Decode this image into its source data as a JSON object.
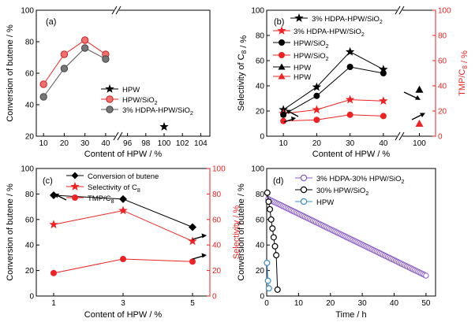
{
  "colors": {
    "black": "#000000",
    "red": "#ee2222",
    "gray": "#666666",
    "purple": "#8a5cc8",
    "blue": "#3d8ec4"
  },
  "chart_data": [
    {
      "panel_label": "(a)",
      "type": "line",
      "xlabel": "Content of HPW / %",
      "ylabel": "Conversion of butene / %",
      "x_ticks_left": [
        "10",
        "20",
        "30",
        "40"
      ],
      "x_ticks_right": [
        "96",
        "98",
        "100",
        "102",
        "104"
      ],
      "y_ticks": [
        "20",
        "40",
        "60",
        "80",
        "100"
      ],
      "ylim": [
        20,
        100
      ],
      "legend": [
        "HPW",
        "HPW/SiO2",
        "3% HDPA-HPW/SiO2"
      ],
      "series": [
        {
          "name": "HPW",
          "x": [
            100
          ],
          "values": [
            26
          ]
        },
        {
          "name": "HPW/SiO2",
          "x": [
            10,
            20,
            30,
            40
          ],
          "values": [
            53,
            72,
            81,
            72
          ]
        },
        {
          "name": "3% HDPA-HPW/SiO2",
          "x": [
            10,
            20,
            30,
            40
          ],
          "values": [
            45,
            63,
            76,
            69
          ]
        }
      ]
    },
    {
      "panel_label": "(b)",
      "type": "line",
      "xlabel": "Content of HPW / %",
      "ylabel": "Selectivity of C8 / %",
      "y2label": "TMP/C8 / %",
      "x_ticks": [
        "10",
        "20",
        "30",
        "40",
        "100"
      ],
      "y_ticks": [
        "0",
        "20",
        "40",
        "60",
        "80",
        "100"
      ],
      "y2_ticks": [
        "0",
        "20",
        "40",
        "60",
        "80",
        "100"
      ],
      "ylim": [
        0,
        100
      ],
      "y2lim": [
        0,
        100
      ],
      "legend": [
        "3% HDPA-HPW/SiO2",
        "3% HDPA-HPW/SiO2",
        "HPW/SiO2",
        "HPW/SiO2",
        "HPW",
        "HPW"
      ],
      "series": [
        {
          "name": "3% HDPA-HPW/SiO2",
          "axis": "left",
          "x": [
            10,
            20,
            30,
            40
          ],
          "values": [
            21,
            39,
            67,
            53
          ]
        },
        {
          "name": "3% HDPA-HPW/SiO2",
          "axis": "right",
          "x": [
            10,
            20,
            30,
            40
          ],
          "values": [
            18,
            21,
            29,
            28
          ]
        },
        {
          "name": "HPW/SiO2",
          "axis": "left",
          "x": [
            10,
            20,
            30,
            40
          ],
          "values": [
            17,
            32,
            55,
            50
          ]
        },
        {
          "name": "HPW/SiO2",
          "axis": "right",
          "x": [
            10,
            20,
            30,
            40
          ],
          "values": [
            12,
            13,
            17,
            16
          ]
        },
        {
          "name": "HPW",
          "axis": "left",
          "x": [
            100
          ],
          "values": [
            37
          ]
        },
        {
          "name": "HPW",
          "axis": "right",
          "x": [
            100
          ],
          "values": [
            10
          ]
        }
      ]
    },
    {
      "panel_label": "(c)",
      "type": "line",
      "xlabel": "Content of HPW / %",
      "ylabel": "Conversion of butene / %",
      "y2label": "Selectivity / %",
      "x_ticks": [
        "1",
        "3",
        "5"
      ],
      "y_ticks": [
        "0",
        "20",
        "40",
        "60",
        "80",
        "100"
      ],
      "y2_ticks": [
        "0",
        "20",
        "40",
        "60",
        "80",
        "100"
      ],
      "ylim": [
        0,
        100
      ],
      "legend": [
        "Conversion of butene",
        "Selectivity of C8",
        "TMP/C8"
      ],
      "series": [
        {
          "name": "Conversion of butene",
          "axis": "left",
          "x": [
            1,
            3,
            5
          ],
          "values": [
            79,
            76,
            54
          ]
        },
        {
          "name": "Selectivity of C8",
          "axis": "right",
          "x": [
            1,
            3,
            5
          ],
          "values": [
            56,
            67,
            43
          ]
        },
        {
          "name": "TMP/C8",
          "axis": "right",
          "x": [
            1,
            3,
            5
          ],
          "values": [
            18,
            29,
            27
          ]
        }
      ]
    },
    {
      "panel_label": "(d)",
      "type": "scatter",
      "xlabel": "Time / h",
      "ylabel": "Conversion of butene / %",
      "x_ticks": [
        "0",
        "10",
        "20",
        "30",
        "40",
        "50"
      ],
      "y_ticks": [
        "0",
        "20",
        "40",
        "60",
        "80",
        "100"
      ],
      "xlim": [
        0,
        53
      ],
      "ylim": [
        0,
        100
      ],
      "legend": [
        "3% HDPA-30% HPW/SiO2",
        "30% HPW/SiO2",
        "HPW"
      ],
      "series": [
        {
          "name": "3% HDPA-30% HPW/SiO2",
          "x_start": 0.5,
          "x_end": 50,
          "y_start": 76,
          "y_end": 16,
          "count": 100
        },
        {
          "name": "30% HPW/SiO2",
          "x": [
            0.2,
            0.6,
            1.0,
            1.4,
            1.8,
            2.2,
            2.6,
            3.0,
            3.4
          ],
          "values": [
            81,
            74,
            68,
            60,
            53,
            46,
            39,
            32,
            5
          ]
        },
        {
          "name": "HPW",
          "x": [
            0.1,
            0.4,
            0.7
          ],
          "values": [
            26,
            12,
            6
          ]
        }
      ]
    }
  ]
}
